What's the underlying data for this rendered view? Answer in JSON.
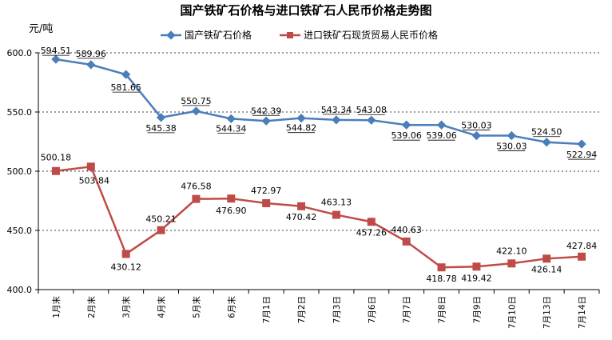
{
  "chart_data": {
    "type": "line",
    "title": "国产铁矿石价格与进口铁矿石人民币价格走势图",
    "ylabel": "元/吨",
    "ylim": [
      400,
      600
    ],
    "yticks": [
      "400.0",
      "450.0",
      "500.0",
      "550.0",
      "600.0"
    ],
    "categories": [
      "1月末",
      "2月末",
      "3月末",
      "4月末",
      "5月末",
      "6月末",
      "7月1日",
      "7月2日",
      "7月3日",
      "7月6日",
      "7月7日",
      "7月8日",
      "7月9日",
      "7月10日",
      "7月13日",
      "7月14日"
    ],
    "grid": true,
    "legend_position": "top",
    "series": [
      {
        "name": "国产铁矿石价格",
        "color": "#4a7ebb",
        "marker": "diamond",
        "values": [
          594.51,
          589.96,
          581.65,
          545.38,
          550.75,
          544.34,
          542.39,
          544.82,
          543.34,
          543.08,
          539.06,
          539.06,
          530.03,
          530.03,
          524.5,
          522.94
        ],
        "labels": [
          "594.51",
          "589.96",
          "581.65",
          "545.38",
          "550.75",
          "544.34",
          "542.39",
          "544.82",
          "543.34",
          "543.08",
          "539.06",
          "539.06",
          "530.03",
          "530.03",
          "524.50",
          "522.94"
        ]
      },
      {
        "name": "进口铁矿石现货贸易人民币价格",
        "color": "#be4b48",
        "marker": "square",
        "values": [
          500.18,
          503.84,
          430.12,
          450.21,
          476.58,
          476.9,
          472.97,
          470.42,
          463.13,
          457.26,
          440.63,
          418.78,
          419.42,
          422.1,
          426.14,
          427.84
        ],
        "labels": [
          "500.18",
          "503.84",
          "430.12",
          "450.21",
          "476.58",
          "476.90",
          "472.97",
          "470.42",
          "463.13",
          "457.26",
          "440.63",
          "418.78",
          "419.42",
          "422.10",
          "426.14",
          "427.84"
        ]
      }
    ]
  }
}
